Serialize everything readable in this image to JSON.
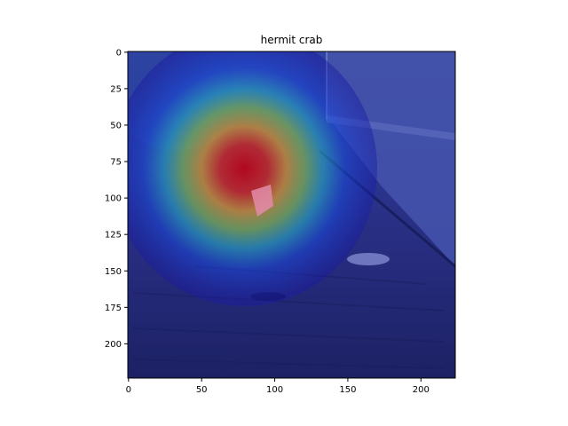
{
  "chart_data": {
    "type": "heatmap",
    "title": "hermit crab",
    "xlabel": "",
    "ylabel": "",
    "xlim": [
      0,
      224
    ],
    "ylim": [
      224,
      0
    ],
    "x_ticks": [
      0,
      50,
      100,
      150,
      200
    ],
    "y_ticks": [
      0,
      25,
      50,
      75,
      100,
      125,
      150,
      175,
      200
    ],
    "grid": false,
    "colormap": "jet",
    "heatmap_peak": {
      "x": 80,
      "y": 80,
      "value": 1.0
    },
    "colors": {
      "background_scene": "#2b2f7a",
      "wall_panel": "#3a4ea0",
      "ground": "#22285e",
      "cool_overlay": "#2a3bd0",
      "peak_red": "#e01010"
    }
  }
}
